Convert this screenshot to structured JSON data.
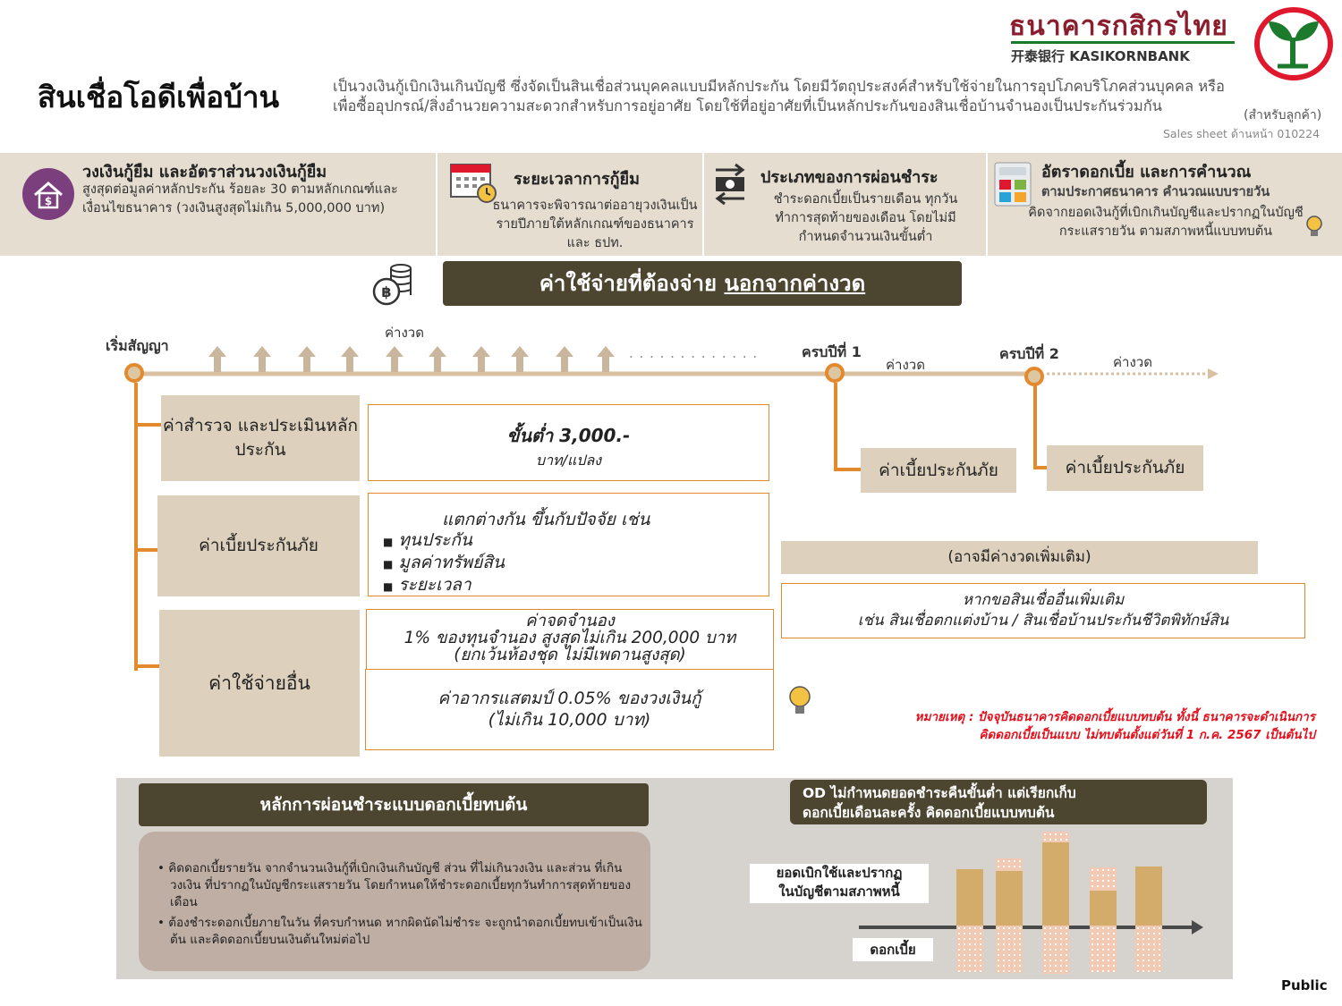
{
  "bank": {
    "name_th": "ธนาคารกสิกรไทย",
    "name_en": "开泰银行 KASIKORNBANK",
    "logo": "kasikornbank-logo",
    "colors": {
      "brand_green": "#1b7a2b",
      "brand_red": "#e0182d",
      "dark": "#4c4631",
      "accent": "#e38a2d"
    }
  },
  "header": {
    "title": "สินเชื่อโอดีเพื่อบ้าน",
    "description": "เป็นวงเงินกู้เบิกเงินเกินบัญชี ซึ่งจัดเป็นสินเชื่อส่วนบุคคลแบบมีหลักประกัน โดยมีวัตถุประสงค์สำหรับใช้จ่ายในการอุปโภคบริโภคส่วนบุคคล หรือ เพื่อซื้ออุปกรณ์/สิ่งอำนวยความสะดวกสำหรับการอยู่อาศัย โดยใช้ที่อยู่อาศัยที่เป็นหลักประกันของสินเชื่อบ้านจำนองเป็นประกันร่วมกัน",
    "for_customer": "(สำหรับลูกค้า)",
    "sales_sheet": "Sales sheet ด้านหน้า 010224"
  },
  "info": [
    {
      "title": "วงเงินกู้ยืม และอัตราส่วนวงเงินกู้ยืม",
      "body": "สูงสุดต่อมูลค่าหลักประกัน ร้อยละ 30 ตามหลักเกณฑ์และเงื่อนไขธนาคาร (วงเงินสูงสุดไม่เกิน 5,000,000 บาท)",
      "icon": "house-money-icon"
    },
    {
      "title": "ระยะเวลาการกู้ยืม",
      "body": "ธนาคารจะพิจารณาต่ออายุวงเงินเป็นรายปีภายใต้หลักเกณฑ์ของธนาคารและ ธปท.",
      "icon": "calendar-clock-icon"
    },
    {
      "title": "ประเภทของการผ่อนชำระ",
      "body": "ชำระดอกเบี้ยเป็นรายเดือน ทุกวันทำการสุดท้ายของเดือน โดยไม่มีกำหนดจำนวนเงินขั้นต่ำ",
      "icon": "cash-exchange-icon"
    },
    {
      "title": "อัตราดอกเบี้ย และการคำนวณ",
      "subtitle": "ตามประกาศธนาคาร คำนวณแบบรายวัน",
      "body": "คิดจากยอดเงินกู้ที่เบิกเกินบัญชีและปรากฏในบัญชีกระแสรายวัน ตามสภาพหนี้แบบทบต้น",
      "icon": "calculator-icon"
    }
  ],
  "section": {
    "title_prefix": "ค่าใช้จ่ายที่ต้องจ่าย",
    "title_underlined": "นอกจากค่างวด",
    "icon": "coins-icon"
  },
  "timeline": {
    "start": "เริ่มสัญญา",
    "installment": "ค่างวด",
    "dots": ". . . . . . . . . . . . .",
    "year1": "ครบปีที่ 1",
    "year2": "ครบปีที่ 2",
    "year1_fee": "ค่าเบี้ยประกันภัย",
    "year2_fee": "ค่าเบี้ยประกันภัย"
  },
  "fees": {
    "survey": {
      "label": "ค่าสำรวจ และประเมินหลักประกัน",
      "value": "ขั้นต่ำ 3,000.-",
      "unit": "บาท/แปลง"
    },
    "insurance": {
      "label": "ค่าเบี้ยประกันภัย",
      "lead": "แตกต่างกัน ขึ้นกับปัจจัย เช่น",
      "items": [
        "ทุนประกัน",
        "มูลค่าทรัพย์สิน",
        "ระยะเวลา"
      ]
    },
    "other": {
      "label": "ค่าใช้จ่ายอื่น",
      "mortgage": [
        "ค่าจดจำนอง",
        "1% ของทุนจำนอง สูงสุดไม่เกิน 200,000 บาท",
        "(ยกเว้นห้องชุด ไม่มีเพดานสูงสุด)"
      ],
      "stamp": [
        "ค่าอากรแสตมป์ 0.05% ของวงเงินกู้",
        "(ไม่เกิน 10,000 บาท)"
      ]
    }
  },
  "extra": {
    "header": "(อาจมีค่างวดเพิ่มเติม)",
    "body": [
      "หากขอสินเชื่ออื่นเพิ่มเติม",
      "เช่น  สินเชื่อตกแต่งบ้าน / สินเชื่อบ้านประกันชีวิตพิทักษ์สิน"
    ]
  },
  "note": [
    "หมายเหตุ : ปัจจุบันธนาคารคิดดอกเบี้ยแบบทบต้น ทั้งนี้ ธนาคารจะดำเนินการ",
    "คิดดอกเบี้ยเป็นแบบ ไม่ทบต้นตั้งแต่วันที่ 1 ก.ค. 2567 เป็นต้นไป"
  ],
  "principle": {
    "title": "หลักการผ่อนชำระแบบดอกเบี้ยทบต้น",
    "points": [
      "คิดดอกเบี้ยรายวัน จากจำนวนเงินกู้ที่เบิกเงินเกินบัญชี ส่วน ที่ไม่เกินวงเงิน และส่วน ที่เกินวงเงิน  ที่ปรากฏในบัญชีกระแสรายวัน โดยกำหนดให้ชำระดอกเบี้ยทุกวันทำการสุดท้ายของเดือน",
      "ต้องชำระดอกเบี้ยภายในวัน ที่ครบกำหนด หากผิดนัดไม่ชำระ  จะถูกนำดอกเบี้ยทบเข้าเป็นเงินต้น  และคิดดอกเบี้ยบนเงินต้นใหม่ต่อไป"
    ]
  },
  "od": {
    "header": [
      "OD ไม่กำหนดยอดชำระคืนขั้นต่ำ แต่เรียกเก็บ",
      "ดอกเบี้ยเดือนละครั้ง คิดดอกเบี้ยแบบทบต้น"
    ],
    "label_balance": [
      "ยอดเบิกใช้และปรากฏ",
      "ในบัญชีตามสภาพหนี้"
    ],
    "label_interest": "ดอกเบี้ย"
  },
  "footer": {
    "classification": "Public"
  }
}
